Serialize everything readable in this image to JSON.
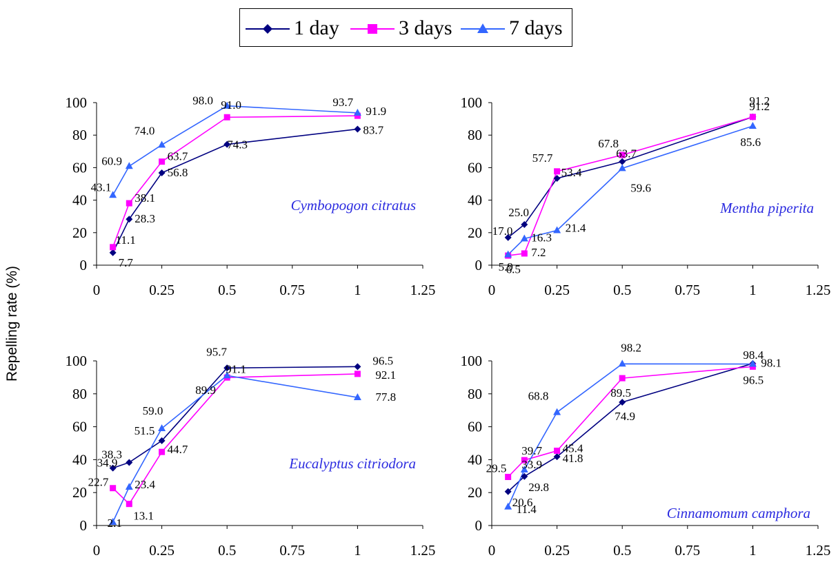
{
  "legend": {
    "items": [
      {
        "label": "1 day",
        "color": "#000080",
        "marker": "diamond"
      },
      {
        "label": "3 days",
        "color": "#FF00FF",
        "marker": "square"
      },
      {
        "label": "7 days",
        "color": "#3366FF",
        "marker": "triangle"
      }
    ]
  },
  "ylabel": "Repelling rate (%)",
  "chart_data": [
    {
      "type": "line",
      "title": "Cymbopogon citratus",
      "x": [
        0.0625,
        0.125,
        0.25,
        0.5,
        1
      ],
      "xticks": [
        "0",
        "0.25",
        "0.5",
        "0.75",
        "1",
        "1.25"
      ],
      "xlim": [
        0,
        1.25
      ],
      "yticks": [
        "0",
        "20",
        "40",
        "60",
        "80",
        "100"
      ],
      "ylim": [
        0,
        100
      ],
      "series": [
        {
          "name": "1 day",
          "values": [
            7.7,
            28.3,
            56.8,
            74.3,
            83.7
          ],
          "labels": [
            "7.7",
            "28.3",
            "56.8",
            "74.3",
            "83.7"
          ]
        },
        {
          "name": "3 days",
          "values": [
            11.1,
            38.1,
            63.7,
            91.0,
            91.9
          ],
          "labels": [
            "11.1",
            "38.1",
            "63.7",
            "91.0",
            "91.9"
          ]
        },
        {
          "name": "7 days",
          "values": [
            43.1,
            60.9,
            74.0,
            98.0,
            93.7
          ],
          "labels": [
            "43.1",
            "60.9",
            "74.0",
            "98.0",
            "93.7"
          ]
        }
      ]
    },
    {
      "type": "line",
      "title": "Mentha piperita",
      "x": [
        0.0625,
        0.125,
        0.25,
        0.5,
        1
      ],
      "xticks": [
        "0",
        "0.25",
        "0.5",
        "0.75",
        "1",
        "1.25"
      ],
      "xlim": [
        0,
        1.25
      ],
      "yticks": [
        "0",
        "20",
        "40",
        "60",
        "80",
        "100"
      ],
      "ylim": [
        0,
        100
      ],
      "series": [
        {
          "name": "1 day",
          "values": [
            17.0,
            25.0,
            53.4,
            63.7,
            91.2
          ],
          "labels": [
            "17.0",
            "25.0",
            "53.4",
            "63.7",
            "91.2"
          ]
        },
        {
          "name": "3 days",
          "values": [
            5.9,
            7.2,
            57.7,
            67.8,
            91.2
          ],
          "labels": [
            "5.9",
            "7.2",
            "57.7",
            "67.8",
            "91.2"
          ]
        },
        {
          "name": "7 days",
          "values": [
            6.5,
            16.3,
            21.4,
            59.6,
            85.6
          ],
          "labels": [
            "6.5",
            "16.3",
            "21.4",
            "59.6",
            "85.6"
          ]
        }
      ]
    },
    {
      "type": "line",
      "title": "Eucalyptus citriodora",
      "x": [
        0.0625,
        0.125,
        0.25,
        0.5,
        1
      ],
      "xticks": [
        "0",
        "0.25",
        "0.5",
        "0.75",
        "1",
        "1.25"
      ],
      "xlim": [
        0,
        1.25
      ],
      "yticks": [
        "0",
        "20",
        "40",
        "60",
        "80",
        "100"
      ],
      "ylim": [
        0,
        100
      ],
      "series": [
        {
          "name": "1 day",
          "values": [
            34.9,
            38.3,
            51.5,
            95.7,
            96.5
          ],
          "labels": [
            "34.9",
            "38.3",
            "51.5",
            "95.7",
            "96.5"
          ]
        },
        {
          "name": "3 days",
          "values": [
            22.7,
            13.1,
            44.7,
            89.9,
            92.1
          ],
          "labels": [
            "22.7",
            "13.1",
            "44.7",
            "89.9",
            "92.1"
          ]
        },
        {
          "name": "7 days",
          "values": [
            2.1,
            23.4,
            59.0,
            91.1,
            77.8
          ],
          "labels": [
            "2.1",
            "23.4",
            "59.0",
            "91.1",
            "77.8"
          ]
        }
      ]
    },
    {
      "type": "line",
      "title": "Cinnamomum camphora",
      "x": [
        0.0625,
        0.125,
        0.25,
        0.5,
        1
      ],
      "xticks": [
        "0",
        "0.25",
        "0.5",
        "0.75",
        "1",
        "1.25"
      ],
      "xlim": [
        0,
        1.25
      ],
      "yticks": [
        "0",
        "20",
        "40",
        "60",
        "80",
        "100"
      ],
      "ylim": [
        0,
        100
      ],
      "series": [
        {
          "name": "1 day",
          "values": [
            20.6,
            29.8,
            41.8,
            74.9,
            98.4
          ],
          "labels": [
            "20.6",
            "29.8",
            "41.8",
            "74.9",
            "98.4"
          ]
        },
        {
          "name": "3 days",
          "values": [
            29.5,
            39.7,
            45.4,
            89.5,
            96.5
          ],
          "labels": [
            "29.5",
            "39.7",
            "45.4",
            "89.5",
            "96.5"
          ]
        },
        {
          "name": "7 days",
          "values": [
            11.4,
            33.9,
            68.8,
            98.2,
            98.1
          ],
          "labels": [
            "11.4",
            "33.9",
            "68.8",
            "98.2",
            "98.1"
          ]
        }
      ]
    }
  ]
}
